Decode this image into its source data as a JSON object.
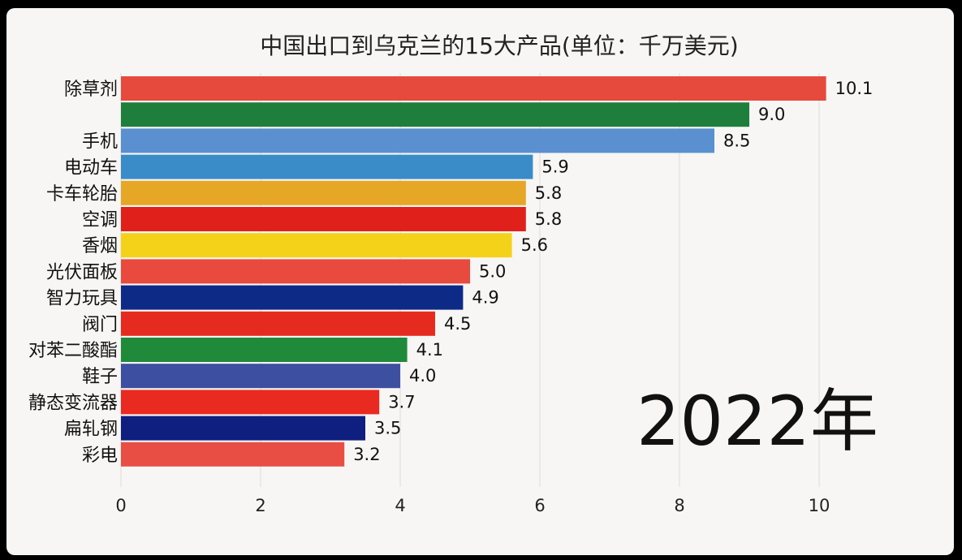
{
  "chart_data": {
    "type": "bar",
    "orientation": "horizontal",
    "title": "中国出口到乌克兰的15大产品(单位：千万美元)",
    "categories": [
      "除草剂",
      "",
      "手机",
      "电动车",
      "卡车轮胎",
      "空调",
      "香烟",
      "光伏面板",
      "智力玩具",
      "阀门",
      "对苯二酸酯",
      "鞋子",
      "静态变流器",
      "扁轧钢",
      "彩电"
    ],
    "values": [
      10.1,
      9.0,
      8.5,
      5.9,
      5.8,
      5.8,
      5.6,
      5.0,
      4.9,
      4.5,
      4.1,
      4.0,
      3.7,
      3.5,
      3.2
    ],
    "value_labels": [
      "10.1",
      "9.0",
      "8.5",
      "5.9",
      "5.8",
      "5.8",
      "5.6",
      "5.0",
      "4.9",
      "4.5",
      "4.1",
      "4.0",
      "3.7",
      "3.5",
      "3.2"
    ],
    "colors": [
      "#e54a3c",
      "#1e7e3c",
      "#5a8fd0",
      "#3a8cc9",
      "#e6a726",
      "#e0201a",
      "#f5d21a",
      "#e84b3e",
      "#0d2a86",
      "#e52b1f",
      "#1f8a3a",
      "#3d4fa0",
      "#e82a20",
      "#0f1f80",
      "#e84e44"
    ],
    "xlim": [
      0,
      10.5
    ],
    "xticks": [
      0,
      2,
      4,
      6,
      8,
      10
    ],
    "xtick_labels": [
      "0",
      "2",
      "4",
      "6",
      "8",
      "10"
    ],
    "grid": true,
    "annotation": "2022年"
  }
}
